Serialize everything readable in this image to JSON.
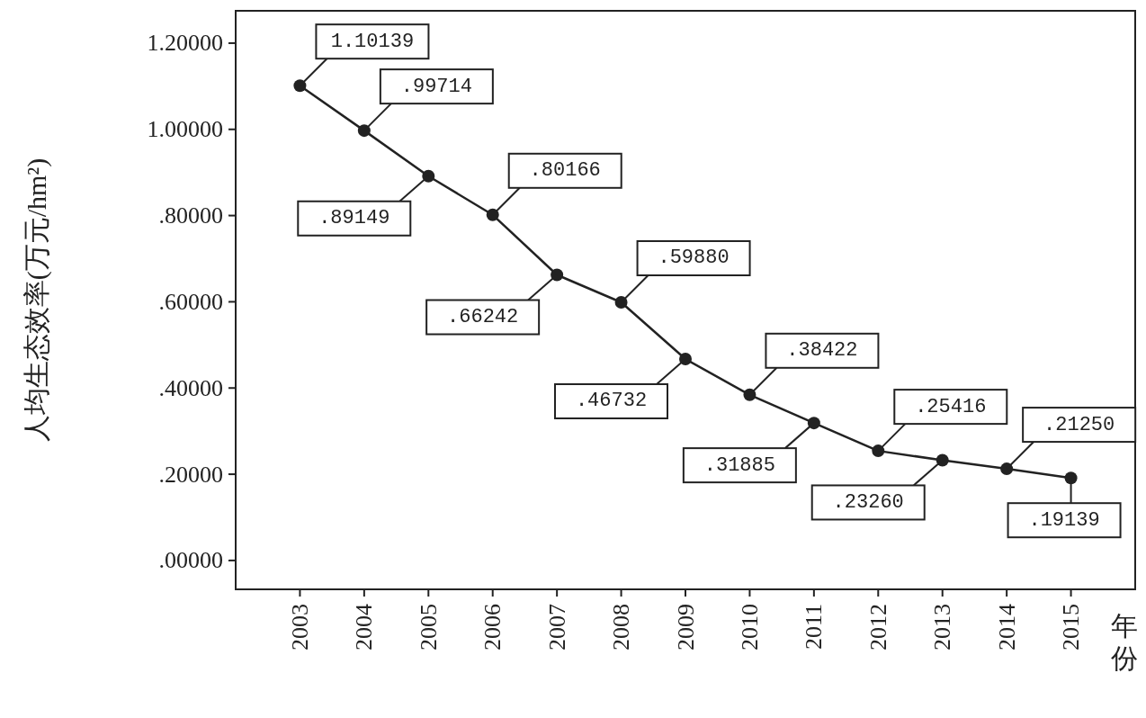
{
  "chart_data": {
    "type": "line",
    "ylabel": "人均生态效率(万元/hm²)",
    "xlabel": "年份",
    "categories": [
      "2003",
      "2004",
      "2005",
      "2006",
      "2007",
      "2008",
      "2009",
      "2010",
      "2011",
      "2012",
      "2013",
      "2014",
      "2015"
    ],
    "values": [
      1.10139,
      0.99714,
      0.89149,
      0.80166,
      0.66242,
      0.5988,
      0.46732,
      0.38422,
      0.31885,
      0.25416,
      0.2326,
      0.2125,
      0.19139
    ],
    "value_labels": [
      "1.10139",
      ".99714",
      ".89149",
      ".80166",
      ".66242",
      ".59880",
      ".46732",
      ".38422",
      ".31885",
      ".25416",
      ".23260",
      ".21250",
      ".19139"
    ],
    "color": "#222222",
    "marker": "circle",
    "line_style": "solid",
    "grid": false,
    "ylim": [
      -0.067,
      1.275
    ],
    "yticks": [
      {
        "value": 0,
        "label": ".00000"
      },
      {
        "value": 0.2,
        "label": ".20000"
      },
      {
        "value": 0.4,
        "label": ".40000"
      },
      {
        "value": 0.6,
        "label": ".60000"
      },
      {
        "value": 0.8,
        "label": ".80000"
      },
      {
        "value": 1.0,
        "label": "1.00000"
      },
      {
        "value": 1.2,
        "label": "1.20000"
      }
    ]
  }
}
